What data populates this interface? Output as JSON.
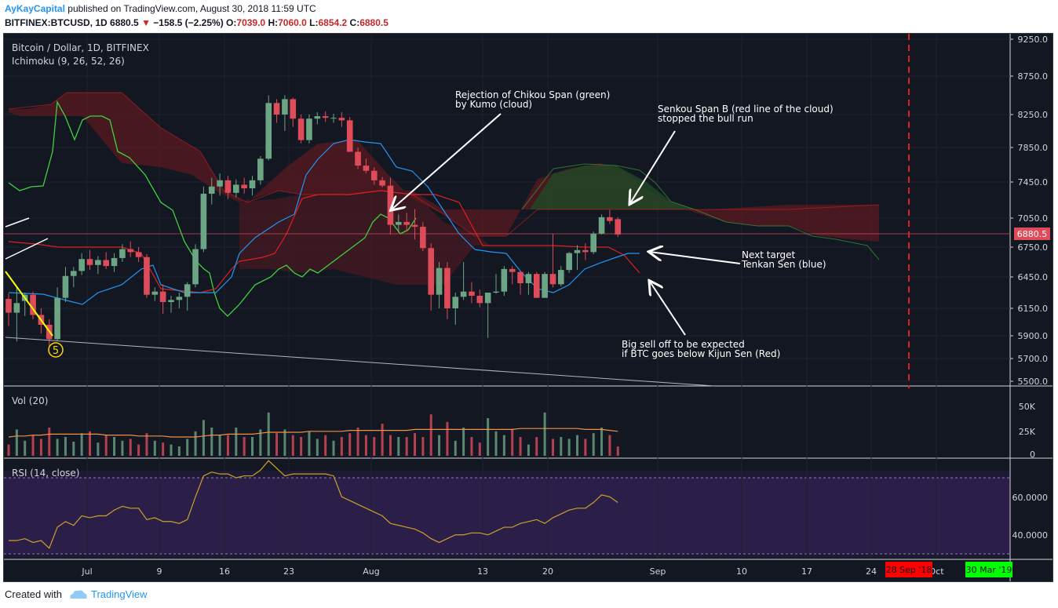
{
  "header": {
    "author": "AyKayCapital",
    "published": "published on TradingView.com, August 30, 2018 11:59 UTC",
    "symbol": "BITFINEX:BTCUSD, 1D",
    "last": "6880.5",
    "arrow": "▼",
    "change": "−158.5 (−2.25%)",
    "o_label": "O:",
    "o": "7039.0",
    "h_label": "H:",
    "h": "7060.0",
    "l_label": "L:",
    "l": "6854.2",
    "c_label": "C:",
    "c": "6880.5"
  },
  "colors": {
    "background": "#131722",
    "up": "#6ba583",
    "down": "#e04b5a",
    "tenkan": "#2196f3",
    "kijun": "#e01f1f",
    "chikou": "#3fd23f",
    "cloud_bear": "#5a1a20",
    "cloud_bull": "#1f4a26",
    "rsi_band": "#2b1f4a",
    "rsi_line": "#c9a227",
    "vol_ma": "#f0904a",
    "price_label_bg": "#e04b5a",
    "red_date": "#ff0000",
    "green_date": "#00ff00"
  },
  "main_pane": {
    "title": "Bitcoin / Dollar, 1D, BITFINEX",
    "indicator": "Ichimoku (9, 26, 52, 26)",
    "current_price_label": "6880.5"
  },
  "volume_pane": {
    "title": "Vol (20)",
    "ticks": [
      "50K",
      "25K",
      "0"
    ]
  },
  "rsi_pane": {
    "title": "RSI (14, close)",
    "ticks": [
      "60.0000",
      "40.0000"
    ]
  },
  "annotations": {
    "chikou": [
      "Rejection of Chikou Span (green)",
      "by Kumo (cloud)"
    ],
    "senkou": [
      "Senkou Span B (red line of the cloud)",
      "stopped the bull run"
    ],
    "tenkan": [
      "Next target",
      "Tenkan Sen (blue)"
    ],
    "kijun": [
      "Big sell off to be expected",
      "if BTC goes below Kijun Sen (Red)"
    ],
    "wave": "5"
  },
  "x_axis": {
    "labels": [
      "Jul",
      "9",
      "16",
      "23",
      "Aug",
      "13",
      "20",
      "Sep",
      "10",
      "17",
      "24",
      "Oct"
    ],
    "red_date": "28 Sep '18",
    "green_date": "30 Mar '19"
  },
  "footer": {
    "created": "Created with",
    "brand": "TradingView"
  },
  "chart_data": {
    "type": "candlestick",
    "title": "Bitcoin / Dollar, 1D, BITFINEX",
    "y_ticks": [
      9250,
      8750,
      8250,
      7850,
      7450,
      7050,
      6750,
      6450,
      6150,
      5900,
      5700,
      5500
    ],
    "ylim": [
      5500,
      9250
    ],
    "candles": [
      {
        "o": 6240,
        "h": 6290,
        "l": 5990,
        "c": 6110
      },
      {
        "o": 6110,
        "h": 6350,
        "l": 5850,
        "c": 6200
      },
      {
        "o": 6220,
        "h": 6300,
        "l": 6080,
        "c": 6280
      },
      {
        "o": 6280,
        "h": 6310,
        "l": 6050,
        "c": 6090
      },
      {
        "o": 6090,
        "h": 6150,
        "l": 5920,
        "c": 6000
      },
      {
        "o": 6000,
        "h": 6050,
        "l": 5800,
        "c": 5870
      },
      {
        "o": 5870,
        "h": 6350,
        "l": 5860,
        "c": 6250
      },
      {
        "o": 6250,
        "h": 6550,
        "l": 6210,
        "c": 6460
      },
      {
        "o": 6460,
        "h": 6550,
        "l": 6350,
        "c": 6510
      },
      {
        "o": 6510,
        "h": 6690,
        "l": 6470,
        "c": 6630
      },
      {
        "o": 6630,
        "h": 6720,
        "l": 6520,
        "c": 6570
      },
      {
        "o": 6570,
        "h": 6660,
        "l": 6480,
        "c": 6620
      },
      {
        "o": 6620,
        "h": 6700,
        "l": 6530,
        "c": 6560
      },
      {
        "o": 6560,
        "h": 6690,
        "l": 6500,
        "c": 6640
      },
      {
        "o": 6640,
        "h": 6780,
        "l": 6600,
        "c": 6730
      },
      {
        "o": 6730,
        "h": 6810,
        "l": 6650,
        "c": 6700
      },
      {
        "o": 6700,
        "h": 6750,
        "l": 6600,
        "c": 6650
      },
      {
        "o": 6650,
        "h": 6680,
        "l": 6250,
        "c": 6280
      },
      {
        "o": 6280,
        "h": 6350,
        "l": 6220,
        "c": 6310
      },
      {
        "o": 6310,
        "h": 6380,
        "l": 6100,
        "c": 6210
      },
      {
        "o": 6210,
        "h": 6270,
        "l": 6110,
        "c": 6230
      },
      {
        "o": 6230,
        "h": 6300,
        "l": 6150,
        "c": 6260
      },
      {
        "o": 6260,
        "h": 6400,
        "l": 6130,
        "c": 6380
      },
      {
        "o": 6380,
        "h": 6780,
        "l": 6350,
        "c": 6730
      },
      {
        "o": 6730,
        "h": 7400,
        "l": 6700,
        "c": 7320
      },
      {
        "o": 7320,
        "h": 7500,
        "l": 7200,
        "c": 7400
      },
      {
        "o": 7400,
        "h": 7550,
        "l": 7300,
        "c": 7470
      },
      {
        "o": 7470,
        "h": 7520,
        "l": 7260,
        "c": 7330
      },
      {
        "o": 7330,
        "h": 7480,
        "l": 7280,
        "c": 7420
      },
      {
        "o": 7420,
        "h": 7500,
        "l": 7320,
        "c": 7380
      },
      {
        "o": 7380,
        "h": 7520,
        "l": 7300,
        "c": 7470
      },
      {
        "o": 7470,
        "h": 7750,
        "l": 7420,
        "c": 7720
      },
      {
        "o": 7720,
        "h": 8500,
        "l": 7700,
        "c": 8400
      },
      {
        "o": 8400,
        "h": 8450,
        "l": 8150,
        "c": 8250
      },
      {
        "o": 8250,
        "h": 8500,
        "l": 8050,
        "c": 8450
      },
      {
        "o": 8450,
        "h": 8470,
        "l": 8100,
        "c": 8200
      },
      {
        "o": 8200,
        "h": 8250,
        "l": 7900,
        "c": 7940
      },
      {
        "o": 7940,
        "h": 8250,
        "l": 7900,
        "c": 8200
      },
      {
        "o": 8200,
        "h": 8280,
        "l": 8130,
        "c": 8230
      },
      {
        "o": 8230,
        "h": 8290,
        "l": 8160,
        "c": 8210
      },
      {
        "o": 8210,
        "h": 8260,
        "l": 8150,
        "c": 8210
      },
      {
        "o": 8210,
        "h": 8280,
        "l": 8100,
        "c": 8180
      },
      {
        "o": 8180,
        "h": 8220,
        "l": 7800,
        "c": 7800
      },
      {
        "o": 7800,
        "h": 7850,
        "l": 7600,
        "c": 7640
      },
      {
        "o": 7640,
        "h": 7720,
        "l": 7550,
        "c": 7580
      },
      {
        "o": 7580,
        "h": 7620,
        "l": 7420,
        "c": 7470
      },
      {
        "o": 7470,
        "h": 7510,
        "l": 7390,
        "c": 7410
      },
      {
        "o": 7410,
        "h": 7500,
        "l": 6880,
        "c": 6980
      },
      {
        "o": 6980,
        "h": 7090,
        "l": 6900,
        "c": 7010
      },
      {
        "o": 7010,
        "h": 7110,
        "l": 6910,
        "c": 6980
      },
      {
        "o": 6980,
        "h": 7150,
        "l": 6830,
        "c": 6960
      },
      {
        "o": 6960,
        "h": 7010,
        "l": 6710,
        "c": 6740
      },
      {
        "o": 6740,
        "h": 6790,
        "l": 6130,
        "c": 6280
      },
      {
        "o": 6280,
        "h": 6600,
        "l": 6150,
        "c": 6540
      },
      {
        "o": 6540,
        "h": 6600,
        "l": 6050,
        "c": 6150
      },
      {
        "o": 6150,
        "h": 6300,
        "l": 6000,
        "c": 6260
      },
      {
        "o": 6260,
        "h": 6600,
        "l": 6230,
        "c": 6310
      },
      {
        "o": 6310,
        "h": 6400,
        "l": 6200,
        "c": 6270
      },
      {
        "o": 6270,
        "h": 6330,
        "l": 6160,
        "c": 6200
      },
      {
        "o": 6200,
        "h": 6300,
        "l": 5880,
        "c": 6300
      },
      {
        "o": 6300,
        "h": 6480,
        "l": 6290,
        "c": 6310
      },
      {
        "o": 6310,
        "h": 6560,
        "l": 6270,
        "c": 6530
      },
      {
        "o": 6530,
        "h": 6560,
        "l": 6380,
        "c": 6500
      },
      {
        "o": 6500,
        "h": 6510,
        "l": 6280,
        "c": 6390
      },
      {
        "o": 6390,
        "h": 6500,
        "l": 6280,
        "c": 6480
      },
      {
        "o": 6480,
        "h": 6500,
        "l": 6250,
        "c": 6250
      },
      {
        "o": 6250,
        "h": 6500,
        "l": 6250,
        "c": 6480
      },
      {
        "o": 6480,
        "h": 6890,
        "l": 6350,
        "c": 6380
      },
      {
        "o": 6380,
        "h": 6560,
        "l": 6360,
        "c": 6520
      },
      {
        "o": 6520,
        "h": 6700,
        "l": 6490,
        "c": 6690
      },
      {
        "o": 6690,
        "h": 6770,
        "l": 6520,
        "c": 6720
      },
      {
        "o": 6720,
        "h": 6790,
        "l": 6620,
        "c": 6700
      },
      {
        "o": 6700,
        "h": 6910,
        "l": 6680,
        "c": 6890
      },
      {
        "o": 6890,
        "h": 7090,
        "l": 6880,
        "c": 7060
      },
      {
        "o": 7060,
        "h": 7140,
        "l": 6990,
        "c": 7020
      },
      {
        "o": 7039,
        "h": 7060,
        "l": 6854,
        "c": 6880.5
      }
    ],
    "volume": [
      12,
      28,
      16,
      22,
      18,
      30,
      18,
      20,
      15,
      24,
      26,
      14,
      22,
      20,
      16,
      18,
      12,
      24,
      16,
      14,
      12,
      10,
      18,
      26,
      38,
      30,
      22,
      22,
      30,
      20,
      20,
      28,
      46,
      24,
      28,
      22,
      20,
      26,
      18,
      22,
      16,
      20,
      24,
      30,
      22,
      20,
      34,
      22,
      20,
      20,
      24,
      20,
      44,
      22,
      36,
      16,
      30,
      20,
      14,
      40,
      26,
      22,
      28,
      20,
      12,
      20,
      46,
      18,
      20,
      18,
      22,
      18,
      24,
      30,
      22,
      10
    ],
    "volume_ma": [
      20,
      21,
      21,
      22,
      22,
      23,
      23,
      23,
      23,
      23,
      23,
      23,
      22,
      22,
      22,
      22,
      21,
      21,
      21,
      21,
      20,
      20,
      20,
      20,
      21,
      22,
      22,
      23,
      23,
      23,
      23,
      24,
      25,
      25,
      25,
      25,
      25,
      26,
      26,
      26,
      26,
      26,
      27,
      27,
      27,
      27,
      27,
      27,
      27,
      27,
      28,
      28,
      28,
      28,
      28,
      28,
      28,
      28,
      28,
      28,
      28,
      28,
      28,
      29,
      29,
      29,
      29,
      29,
      29,
      29,
      29,
      28,
      28,
      28,
      27,
      26
    ],
    "rsi": [
      37,
      37,
      38,
      36,
      37,
      33,
      44,
      47,
      45,
      50,
      49,
      50,
      50,
      53,
      55,
      54,
      54,
      48,
      49,
      47,
      47,
      46,
      48,
      60,
      71,
      73,
      72,
      72,
      70,
      71,
      71,
      74,
      79,
      75,
      71,
      72,
      72,
      72,
      72,
      72,
      71,
      60,
      58,
      56,
      54,
      52,
      50,
      46,
      45,
      44,
      43,
      41,
      38,
      36,
      38,
      40,
      40,
      41,
      41,
      40,
      42,
      44,
      44,
      46,
      47,
      48,
      46,
      49,
      51,
      53,
      54,
      54,
      57,
      61,
      60,
      57
    ]
  }
}
